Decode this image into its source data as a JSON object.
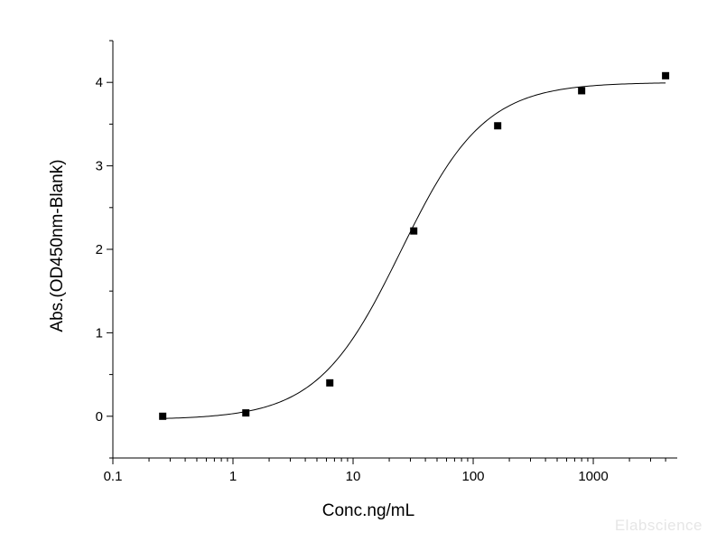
{
  "chart_data": {
    "type": "scatter",
    "xlabel": "Conc.ng/mL",
    "ylabel": "Abs.(OD450nm-Blank)",
    "xscale": "log",
    "xlim": [
      0.1,
      5000
    ],
    "ylim": [
      -0.5,
      4.5
    ],
    "x_ticks": [
      0.1,
      1,
      10,
      100,
      1000
    ],
    "x_tick_labels": [
      "0.1",
      "1",
      "10",
      "100",
      "1000"
    ],
    "y_ticks": [
      0,
      1,
      2,
      3,
      4
    ],
    "y_tick_labels": [
      "0",
      "1",
      "2",
      "3",
      "4"
    ],
    "series": [
      {
        "marker": "square",
        "color": "#000000",
        "x": [
          0.26,
          1.28,
          6.4,
          32,
          160,
          800,
          4000
        ],
        "y": [
          0.0,
          0.04,
          0.4,
          2.22,
          3.48,
          3.9,
          4.08
        ]
      }
    ],
    "fit_curve": {
      "model": "four-parameter logistic",
      "bottom": -0.04,
      "top": 4.0,
      "ec50": 25,
      "hill": 1.25,
      "color": "#000000"
    },
    "grid": false
  },
  "watermark": "Elabscience"
}
